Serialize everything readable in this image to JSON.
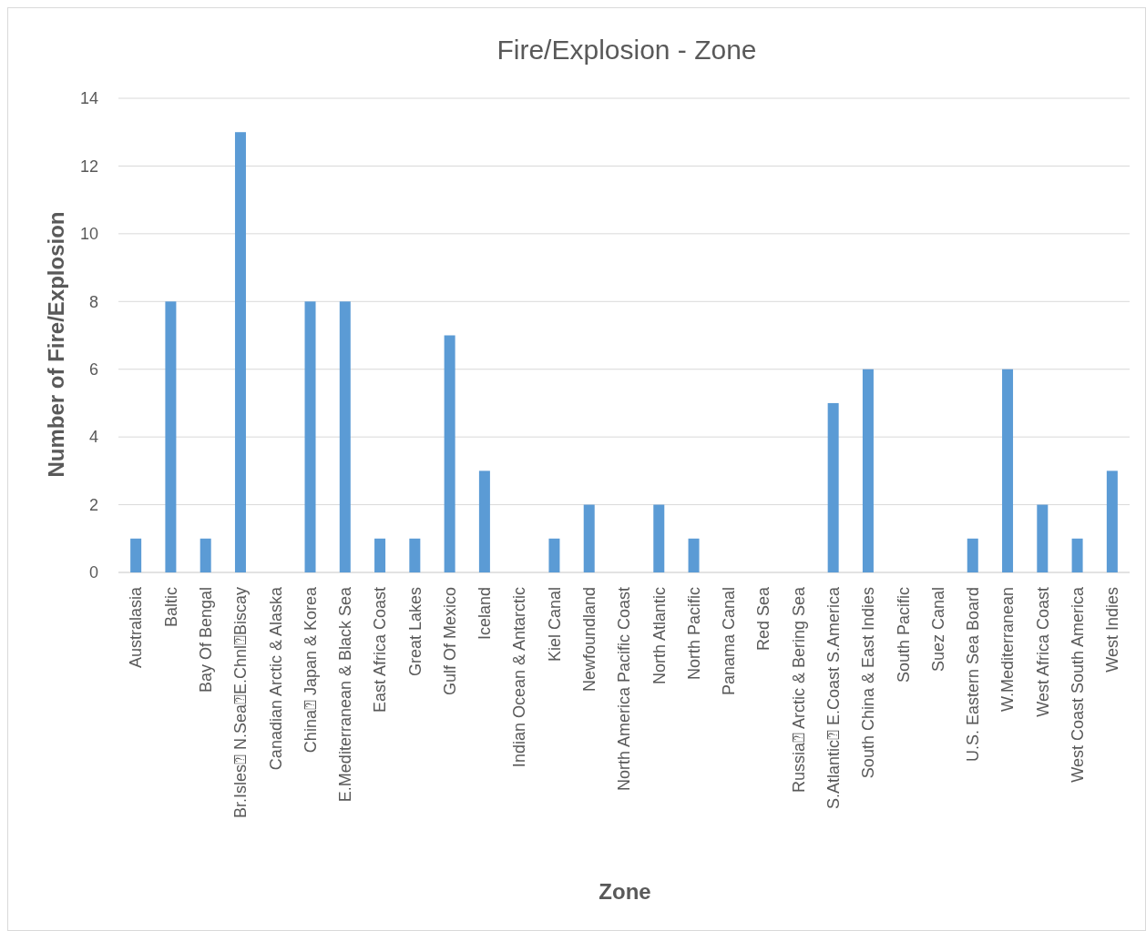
{
  "chart_data": {
    "type": "bar",
    "title": "Fire/Explosion - Zone",
    "xlabel": "Zone",
    "ylabel": "Number of Fire/Explosion",
    "categories": [
      "Australasia",
      "Baltic",
      "Bay Of Bengal",
      "Br.Isles⍰ N.Sea⍰E.Chnl⍰Biscay",
      "Canadian Arctic & Alaska",
      "China⍰ Japan & Korea",
      "E.Mediterranean & Black Sea",
      "East Africa Coast",
      "Great Lakes",
      "Gulf Of Mexico",
      "Iceland",
      "Indian Ocean & Antarctic",
      "Kiel Canal",
      "Newfoundland",
      "North America Pacific Coast",
      "North Atlantic",
      "North Pacific",
      "Panama Canal",
      "Red Sea",
      "Russia⍰ Arctic & Bering Sea",
      "S.Atlantic⍰ E.Coast S.America",
      "South China & East Indies",
      "South Pacific",
      "Suez Canal",
      "U.S. Eastern Sea Board",
      "W.Mediterranean",
      "West Africa Coast",
      "West Coast South America",
      "West Indies"
    ],
    "values": [
      1,
      8,
      1,
      13,
      0,
      8,
      8,
      1,
      1,
      7,
      3,
      0,
      1,
      2,
      0,
      2,
      1,
      0,
      0,
      0,
      5,
      6,
      0,
      0,
      1,
      6,
      2,
      1,
      3
    ],
    "color": "#5b9bd5",
    "ylim": [
      0,
      14
    ],
    "yticks": [
      0,
      2,
      4,
      6,
      8,
      10,
      12,
      14
    ],
    "grid": "y"
  }
}
